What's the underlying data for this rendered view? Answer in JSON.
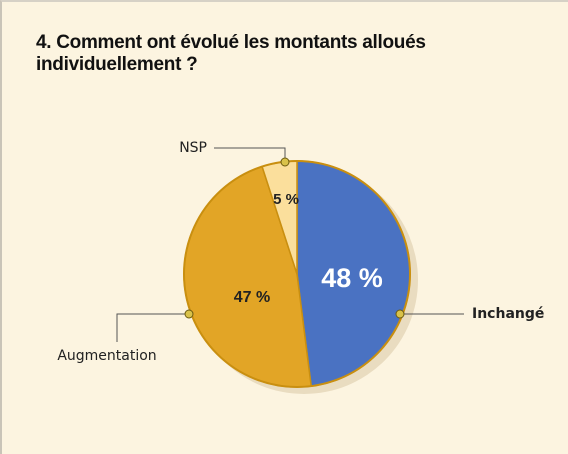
{
  "chart_data": {
    "type": "pie",
    "title": "4. Comment ont évolué les montants alloués individuellement ?",
    "categories": [
      "Inchangé",
      "Augmentation",
      "NSP"
    ],
    "values": [
      48,
      47,
      5
    ],
    "value_labels": [
      "48 %",
      "47 %",
      "5 %"
    ],
    "colors": [
      "#4a72c2",
      "#e2a526",
      "#fbdf9c"
    ]
  }
}
